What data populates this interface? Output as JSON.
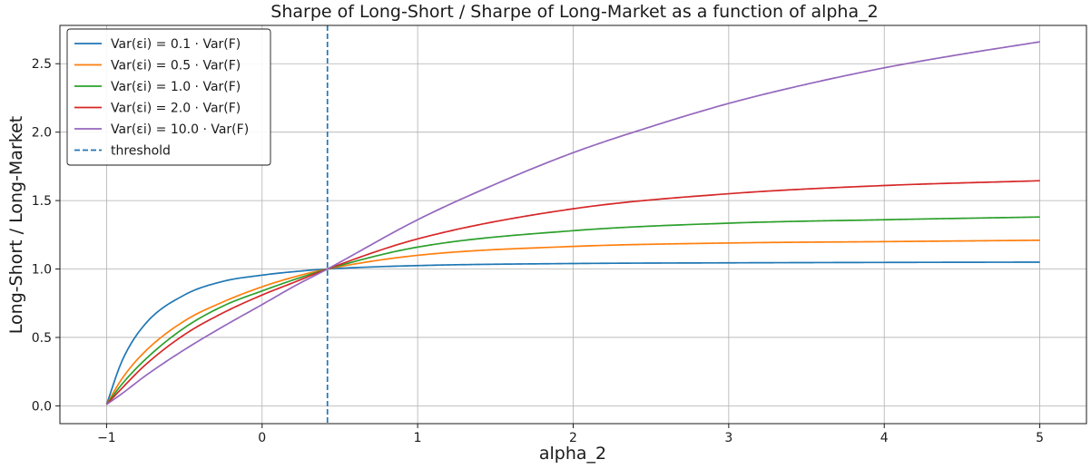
{
  "chart_data": {
    "type": "line",
    "title": "Sharpe of Long-Short / Sharpe of Long-Market as a function of alpha_2",
    "xlabel": "alpha_2",
    "ylabel": "Long-Short / Long-Market",
    "xlim": [
      -1.3,
      5.3
    ],
    "ylim": [
      -0.13,
      2.78
    ],
    "x_ticks": [
      -1,
      0,
      1,
      2,
      3,
      4,
      5
    ],
    "x_tick_labels": [
      "−1",
      "0",
      "1",
      "2",
      "3",
      "4",
      "5"
    ],
    "y_ticks": [
      0.0,
      0.5,
      1.0,
      1.5,
      2.0,
      2.5
    ],
    "y_tick_labels": [
      "0.0",
      "0.5",
      "1.0",
      "1.5",
      "2.0",
      "2.5"
    ],
    "grid": true,
    "legend_position": "top-left",
    "threshold": {
      "name": "threshold",
      "x": 0.42,
      "color": "#1f77b4",
      "style": "dashed"
    },
    "series": [
      {
        "name": "Var(εi) = 0.1 · Var(F)",
        "color": "#1f77b4",
        "x": [
          -1,
          -0.9,
          -0.75,
          -0.5,
          -0.25,
          0,
          0.2,
          0.42,
          1,
          2,
          3,
          4,
          5
        ],
        "y": [
          0.01,
          0.33,
          0.6,
          0.81,
          0.91,
          0.955,
          0.98,
          1.0,
          1.025,
          1.04,
          1.045,
          1.048,
          1.05
        ]
      },
      {
        "name": "Var(εi) = 0.5 · Var(F)",
        "color": "#ff7f0e",
        "x": [
          -1,
          -0.9,
          -0.75,
          -0.5,
          -0.25,
          0,
          0.2,
          0.42,
          1,
          2,
          3,
          4,
          5
        ],
        "y": [
          0.01,
          0.2,
          0.4,
          0.62,
          0.76,
          0.87,
          0.94,
          1.0,
          1.1,
          1.165,
          1.19,
          1.2,
          1.21
        ]
      },
      {
        "name": "Var(εi) = 1.0 · Var(F)",
        "color": "#2ca02c",
        "x": [
          -1,
          -0.9,
          -0.75,
          -0.5,
          -0.25,
          0,
          0.2,
          0.42,
          1,
          2,
          3,
          4,
          5
        ],
        "y": [
          0.01,
          0.16,
          0.34,
          0.57,
          0.73,
          0.84,
          0.92,
          1.0,
          1.16,
          1.28,
          1.335,
          1.36,
          1.38
        ]
      },
      {
        "name": "Var(εi) = 2.0 · Var(F)",
        "color": "#d62728",
        "x": [
          -1,
          -0.9,
          -0.75,
          -0.5,
          -0.25,
          0,
          0.2,
          0.42,
          1,
          2,
          3,
          4,
          5
        ],
        "y": [
          0.01,
          0.13,
          0.3,
          0.52,
          0.68,
          0.81,
          0.9,
          1.0,
          1.22,
          1.44,
          1.55,
          1.61,
          1.645
        ]
      },
      {
        "name": "Var(εi) = 10.0 · Var(F)",
        "color": "#9467bd",
        "x": [
          -1,
          -0.9,
          -0.75,
          -0.5,
          -0.25,
          0,
          0.2,
          0.42,
          1,
          1.5,
          2,
          2.5,
          3,
          3.5,
          4,
          4.5,
          5
        ],
        "y": [
          0.01,
          0.09,
          0.22,
          0.41,
          0.58,
          0.74,
          0.87,
          1.0,
          1.36,
          1.62,
          1.85,
          2.04,
          2.21,
          2.35,
          2.47,
          2.57,
          2.66
        ]
      }
    ]
  }
}
